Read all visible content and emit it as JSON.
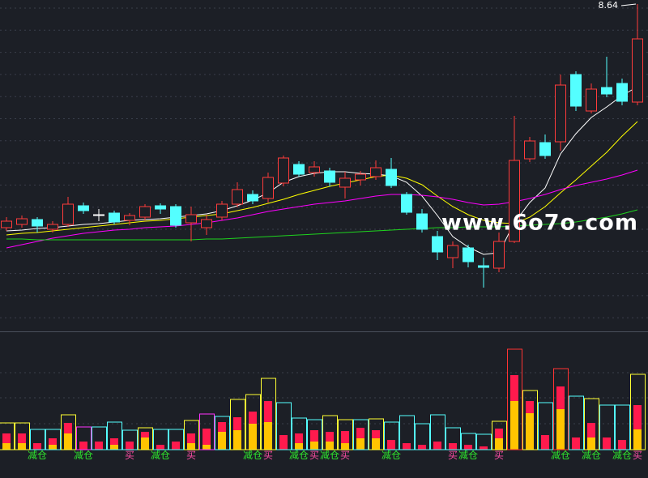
{
  "chart_data": {
    "type": "candlestick",
    "ylim": [
      4.59,
      8.69
    ],
    "up_color": "#ff3b3b",
    "down_color": "#54ffff",
    "flat_color": "#ffffff",
    "open": [
      5.88,
      5.92,
      5.98,
      5.86,
      5.92,
      6.15,
      6.04,
      6.06,
      5.97,
      6.01,
      6.15,
      6.14,
      5.94,
      5.88,
      6.01,
      6.17,
      6.29,
      6.24,
      6.43,
      6.66,
      6.56,
      6.58,
      6.38,
      6.47,
      6.51,
      6.6,
      6.29,
      6.05,
      5.77,
      5.51,
      5.63,
      5.41,
      5.38,
      5.71,
      6.73,
      6.93,
      6.94,
      7.77,
      7.32,
      7.61,
      7.66,
      7.43
    ],
    "high": [
      6.01,
      6.03,
      6.01,
      5.96,
      6.26,
      6.19,
      6.11,
      6.09,
      6.06,
      6.17,
      6.18,
      6.17,
      6.14,
      6.04,
      6.21,
      6.44,
      6.34,
      6.56,
      6.77,
      6.7,
      6.7,
      6.62,
      6.57,
      6.58,
      6.71,
      6.74,
      6.32,
      6.11,
      5.84,
      5.71,
      5.67,
      5.51,
      5.82,
      7.26,
      7.0,
      7.03,
      7.77,
      7.81,
      7.66,
      7.99,
      7.72,
      8.64
    ],
    "low": [
      5.84,
      5.88,
      5.82,
      5.82,
      5.89,
      6.05,
      5.96,
      5.92,
      5.91,
      5.97,
      6.05,
      5.88,
      5.71,
      5.79,
      5.97,
      6.13,
      6.17,
      6.19,
      6.39,
      6.51,
      6.51,
      6.39,
      6.24,
      6.4,
      6.47,
      6.37,
      6.04,
      5.82,
      5.48,
      5.38,
      5.39,
      5.14,
      5.33,
      5.69,
      6.69,
      6.73,
      6.83,
      7.32,
      7.29,
      7.49,
      7.39,
      7.39
    ],
    "close": [
      5.96,
      5.99,
      5.9,
      5.92,
      6.17,
      6.09,
      6.04,
      5.95,
      6.03,
      6.14,
      6.11,
      5.91,
      6.04,
      5.98,
      6.17,
      6.35,
      6.21,
      6.5,
      6.74,
      6.54,
      6.63,
      6.44,
      6.49,
      6.54,
      6.62,
      6.4,
      6.07,
      5.86,
      5.58,
      5.66,
      5.46,
      5.39,
      5.71,
      6.71,
      6.95,
      6.77,
      7.64,
      7.38,
      7.59,
      7.53,
      7.44,
      8.21
    ],
    "ma_series": [
      {
        "color": "#ffffff",
        "values": [
          5.84,
          5.85,
          5.87,
          5.88,
          5.9,
          5.92,
          5.93,
          5.95,
          5.97,
          5.98,
          5.99,
          6.01,
          6.03,
          6.05,
          6.09,
          6.15,
          6.22,
          6.31,
          6.44,
          6.51,
          6.55,
          6.57,
          6.57,
          6.55,
          6.54,
          6.52,
          6.44,
          6.27,
          6.03,
          5.77,
          5.64,
          5.55,
          5.57,
          5.94,
          6.19,
          6.37,
          6.79,
          7.04,
          7.24,
          7.37,
          7.51,
          7.62
        ]
      },
      {
        "color": "#ffff00",
        "values": [
          5.79,
          5.81,
          5.82,
          5.84,
          5.86,
          5.88,
          5.9,
          5.92,
          5.94,
          5.96,
          5.97,
          5.99,
          6.01,
          6.03,
          6.05,
          6.09,
          6.13,
          6.18,
          6.23,
          6.29,
          6.34,
          6.39,
          6.43,
          6.47,
          6.51,
          6.53,
          6.49,
          6.41,
          6.27,
          6.14,
          6.04,
          5.97,
          5.94,
          5.93,
          6.01,
          6.14,
          6.31,
          6.47,
          6.64,
          6.81,
          7.01,
          7.19
        ]
      },
      {
        "color": "#ff00ff",
        "values": [
          5.63,
          5.67,
          5.71,
          5.75,
          5.78,
          5.81,
          5.83,
          5.85,
          5.86,
          5.88,
          5.89,
          5.9,
          5.92,
          5.94,
          5.97,
          6.0,
          6.04,
          6.08,
          6.11,
          6.14,
          6.17,
          6.19,
          6.21,
          6.24,
          6.27,
          6.29,
          6.29,
          6.28,
          6.26,
          6.23,
          6.19,
          6.16,
          6.17,
          6.2,
          6.24,
          6.29,
          6.35,
          6.4,
          6.44,
          6.48,
          6.53,
          6.59
        ]
      },
      {
        "color": "#1ed41e",
        "values": [
          5.74,
          5.74,
          5.73,
          5.73,
          5.73,
          5.73,
          5.73,
          5.73,
          5.73,
          5.73,
          5.73,
          5.73,
          5.73,
          5.74,
          5.74,
          5.75,
          5.76,
          5.77,
          5.78,
          5.79,
          5.8,
          5.81,
          5.82,
          5.83,
          5.84,
          5.85,
          5.86,
          5.87,
          5.88,
          5.88,
          5.89,
          5.89,
          5.89,
          5.9,
          5.91,
          5.92,
          5.93,
          5.95,
          5.98,
          6.01,
          6.05,
          6.1
        ]
      }
    ],
    "volume": {
      "ylim": [
        0,
        145
      ],
      "values": [
        33,
        33,
        25,
        25,
        43,
        28,
        28,
        34,
        24,
        27,
        25,
        25,
        36,
        44,
        41,
        62,
        68,
        88,
        58,
        39,
        37,
        42,
        37,
        37,
        38,
        34,
        42,
        32,
        43,
        27,
        20,
        19,
        35,
        124,
        73,
        58,
        100,
        66,
        63,
        55,
        55,
        93
      ],
      "colors": [
        "#ffff33",
        "#ffff33",
        "#54ffff",
        "#54ffff",
        "#ffff33",
        "#ff33ff",
        "#54ffff",
        "#54ffff",
        "#54ffff",
        "#ffff33",
        "#54ffff",
        "#54ffff",
        "#ffff33",
        "#ff33ff",
        "#54ffff",
        "#ffff33",
        "#ffff33",
        "#ffff33",
        "#54ffff",
        "#54ffff",
        "#54ffff",
        "#ffff33",
        "#ffff33",
        "#54ffff",
        "#ffff33",
        "#54ffff",
        "#54ffff",
        "#54ffff",
        "#54ffff",
        "#54ffff",
        "#54ffff",
        "#54ffff",
        "#ffff33",
        "#ff3333",
        "#ffff33",
        "#54ffff",
        "#ff3333",
        "#54ffff",
        "#ffff33",
        "#54ffff",
        "#54ffff",
        "#ffff33"
      ],
      "inner": [
        {
          "color": "#ffc400",
          "values": [
            8,
            8,
            0,
            6,
            20,
            0,
            0,
            6,
            0,
            15,
            0,
            0,
            8,
            6,
            22,
            24,
            32,
            34,
            0,
            8,
            10,
            10,
            8,
            14,
            14,
            0,
            0,
            0,
            0,
            0,
            0,
            0,
            14,
            60,
            45,
            0,
            50,
            0,
            15,
            0,
            0,
            25
          ]
        },
        {
          "color": "#ff1a4d",
          "values": [
            12,
            12,
            8,
            8,
            13,
            10,
            10,
            8,
            10,
            7,
            6,
            10,
            12,
            20,
            12,
            16,
            15,
            26,
            18,
            12,
            14,
            12,
            15,
            13,
            10,
            12,
            8,
            6,
            10,
            8,
            6,
            4,
            12,
            32,
            15,
            18,
            28,
            15,
            18,
            15,
            12,
            30
          ]
        }
      ]
    },
    "signals": [
      {
        "text": "减仓",
        "color": "#2ee82e",
        "candles": [
          2,
          5,
          10,
          16,
          19,
          21,
          25,
          30,
          36,
          38,
          40
        ]
      },
      {
        "text": "买",
        "color": "#ff4da6",
        "candles": [
          8,
          12,
          17,
          20,
          22,
          29,
          32,
          41
        ]
      }
    ],
    "watermark": "www.6o7o.com"
  }
}
